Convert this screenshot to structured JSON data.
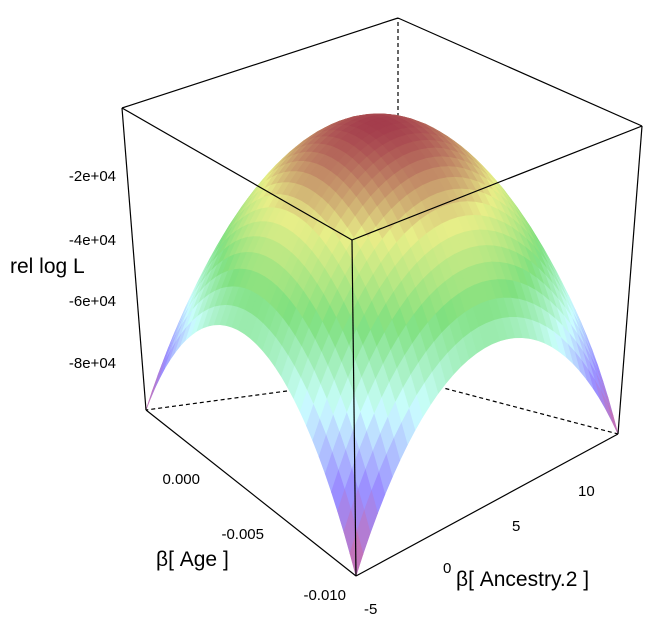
{
  "chart_data": {
    "type": "surface",
    "x_axis": {
      "label": "β[ Age ]",
      "ticks": [
        {
          "value": 0.0,
          "label": "0.000"
        },
        {
          "value": -0.005,
          "label": "-0.005"
        },
        {
          "value": -0.01,
          "label": "-0.010"
        }
      ],
      "range": [
        -0.01,
        0.002
      ]
    },
    "y_axis": {
      "label": "β[ Ancestry.2 ]",
      "ticks": [
        {
          "value": -5,
          "label": "-5"
        },
        {
          "value": 0,
          "label": "0"
        },
        {
          "value": 5,
          "label": "5"
        },
        {
          "value": 10,
          "label": "10"
        }
      ],
      "range": [
        -5,
        12
      ]
    },
    "z_axis": {
      "label": "rel log L",
      "ticks": [
        {
          "value": -20000,
          "label": "-2e+04"
        },
        {
          "value": -40000,
          "label": "-4e+04"
        },
        {
          "value": -60000,
          "label": "-6e+04"
        },
        {
          "value": -80000,
          "label": "-8e+04"
        }
      ],
      "range": [
        -96000,
        0
      ]
    },
    "surface": {
      "shape": "concave paraboloid",
      "peak": {
        "age": -0.004,
        "ancestry2": 3.5,
        "rel_log_L": 0
      },
      "corner_values": [
        {
          "age": 0.002,
          "ancestry2": -5,
          "rel_log_L": -96000
        },
        {
          "age": 0.002,
          "ancestry2": 12,
          "rel_log_L": -96000
        },
        {
          "age": -0.01,
          "ancestry2": -5,
          "rel_log_L": -96000
        },
        {
          "age": -0.01,
          "ancestry2": 12,
          "rel_log_L": -96000
        }
      ],
      "colormap": [
        "#d06aa0",
        "#9a8cff",
        "#cbffff",
        "#7fe07f",
        "#e8ee88",
        "#a43c4c"
      ]
    },
    "box": true,
    "grid": false,
    "legend": false
  }
}
